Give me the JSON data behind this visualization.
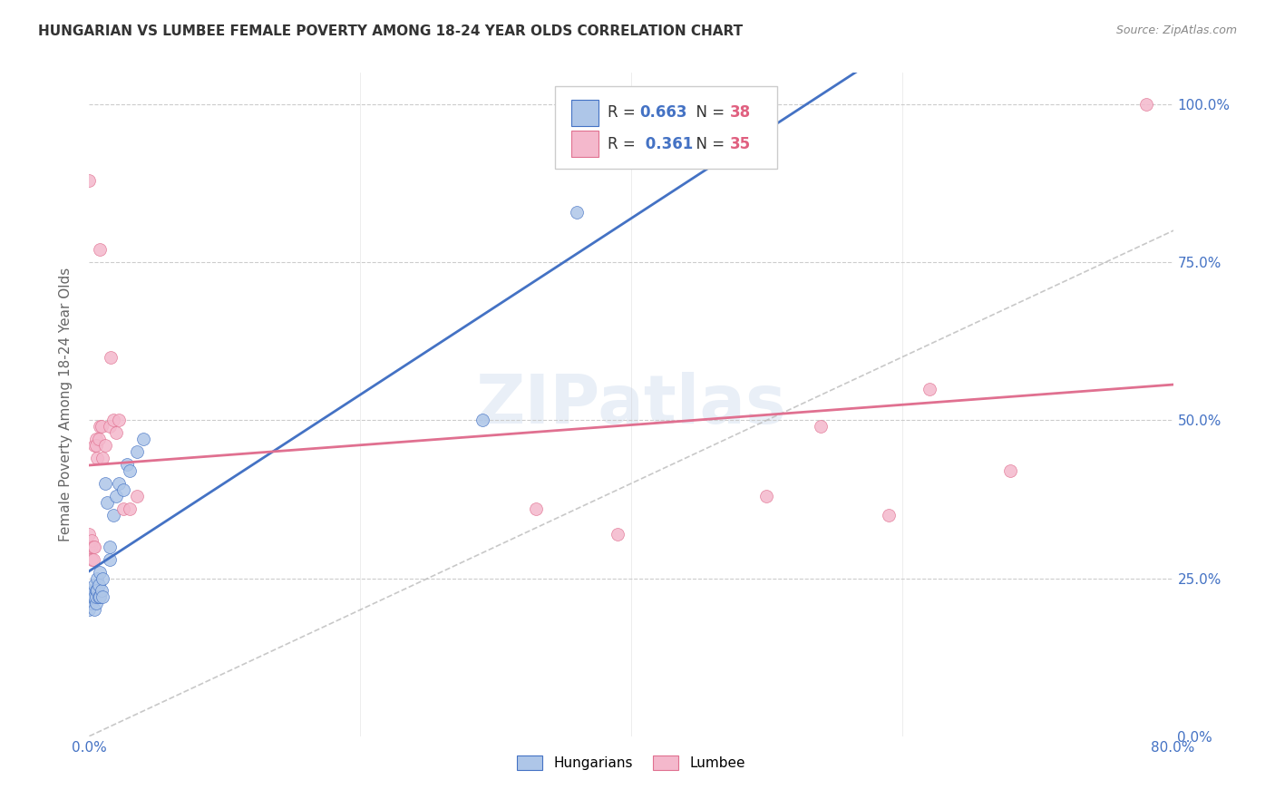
{
  "title": "HUNGARIAN VS LUMBEE FEMALE POVERTY AMONG 18-24 YEAR OLDS CORRELATION CHART",
  "source": "Source: ZipAtlas.com",
  "ylabel": "Female Poverty Among 18-24 Year Olds",
  "xlim": [
    0.0,
    0.8
  ],
  "ylim": [
    0.0,
    1.05
  ],
  "background_color": "#ffffff",
  "grid_color": "#cccccc",
  "watermark": "ZIPatlas",
  "hungarian_color": "#aec6e8",
  "lumbee_color": "#f4b8cc",
  "trend_hungarian_color": "#4472c4",
  "trend_lumbee_color": "#e07090",
  "diagonal_color": "#bbbbbb",
  "hungarian_x": [
    0.0,
    0.0,
    0.0,
    0.0,
    0.0,
    0.002,
    0.002,
    0.003,
    0.003,
    0.004,
    0.004,
    0.004,
    0.005,
    0.005,
    0.005,
    0.006,
    0.006,
    0.007,
    0.007,
    0.008,
    0.008,
    0.009,
    0.01,
    0.01,
    0.012,
    0.013,
    0.015,
    0.015,
    0.018,
    0.02,
    0.022,
    0.025,
    0.028,
    0.03,
    0.035,
    0.04,
    0.29,
    0.36
  ],
  "hungarian_y": [
    0.2,
    0.21,
    0.22,
    0.22,
    0.23,
    0.21,
    0.22,
    0.22,
    0.23,
    0.24,
    0.22,
    0.2,
    0.23,
    0.21,
    0.22,
    0.25,
    0.23,
    0.22,
    0.24,
    0.26,
    0.22,
    0.23,
    0.25,
    0.22,
    0.4,
    0.37,
    0.3,
    0.28,
    0.35,
    0.38,
    0.4,
    0.39,
    0.43,
    0.42,
    0.45,
    0.47,
    0.5,
    0.83
  ],
  "lumbee_x": [
    0.0,
    0.0,
    0.0,
    0.001,
    0.002,
    0.002,
    0.003,
    0.003,
    0.004,
    0.004,
    0.005,
    0.005,
    0.006,
    0.007,
    0.008,
    0.008,
    0.009,
    0.01,
    0.012,
    0.015,
    0.016,
    0.018,
    0.02,
    0.022,
    0.025,
    0.03,
    0.035,
    0.33,
    0.39,
    0.5,
    0.54,
    0.59,
    0.62,
    0.68,
    0.78
  ],
  "lumbee_y": [
    0.32,
    0.3,
    0.88,
    0.3,
    0.31,
    0.28,
    0.28,
    0.3,
    0.3,
    0.46,
    0.47,
    0.46,
    0.44,
    0.47,
    0.49,
    0.77,
    0.49,
    0.44,
    0.46,
    0.49,
    0.6,
    0.5,
    0.48,
    0.5,
    0.36,
    0.36,
    0.38,
    0.36,
    0.32,
    0.38,
    0.49,
    0.35,
    0.55,
    0.42,
    1.0
  ],
  "ytick_vals": [
    0.0,
    0.25,
    0.5,
    0.75,
    1.0
  ],
  "ytick_labels_right": [
    "0.0%",
    "25.0%",
    "50.0%",
    "75.0%",
    "100.0%"
  ],
  "xtick_vals": [
    0.0,
    0.2,
    0.4,
    0.6,
    0.8
  ],
  "xtick_labels": [
    "0.0%",
    "",
    "",
    "",
    "80.0%"
  ]
}
